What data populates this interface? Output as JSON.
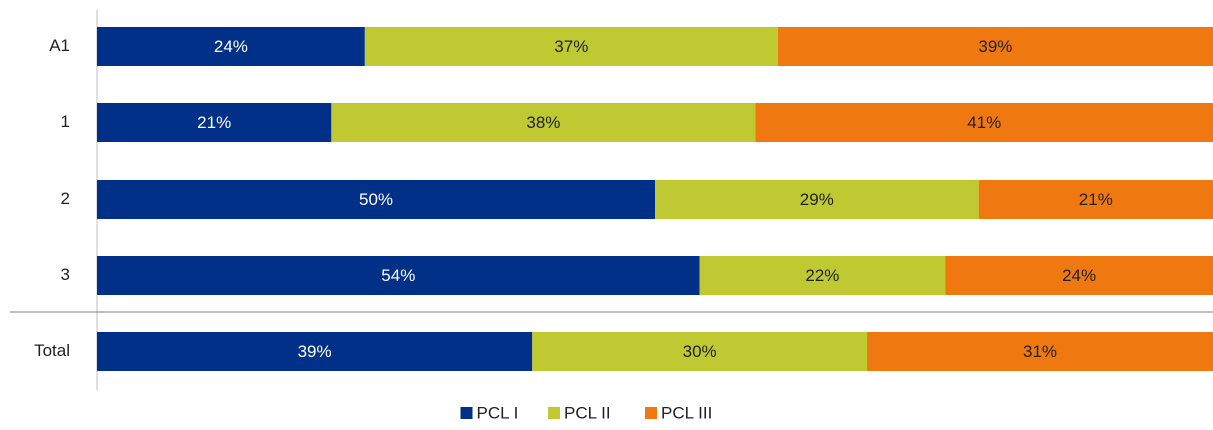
{
  "chart_data": {
    "type": "bar",
    "orientation": "horizontal",
    "stacked": true,
    "categories": [
      "A1",
      "1",
      "2",
      "3",
      "Total"
    ],
    "xlim": [
      0,
      100
    ],
    "legend": "bottom",
    "series": [
      {
        "name": "PCL I",
        "color": "#003087",
        "values": [
          24,
          21,
          50,
          54,
          39
        ],
        "value_labels": [
          "24%",
          "21%",
          "50%",
          "54%",
          "39%"
        ]
      },
      {
        "name": "PCL II",
        "color": "#bfca32",
        "values": [
          37,
          38,
          29,
          22,
          30
        ],
        "value_labels": [
          "37%",
          "38%",
          "29%",
          "22%",
          "30%"
        ]
      },
      {
        "name": "PCL III",
        "color": "#f07810",
        "values": [
          39,
          41,
          21,
          24,
          31
        ],
        "value_labels": [
          "39%",
          "41%",
          "21%",
          "24%",
          "31%"
        ]
      }
    ]
  }
}
